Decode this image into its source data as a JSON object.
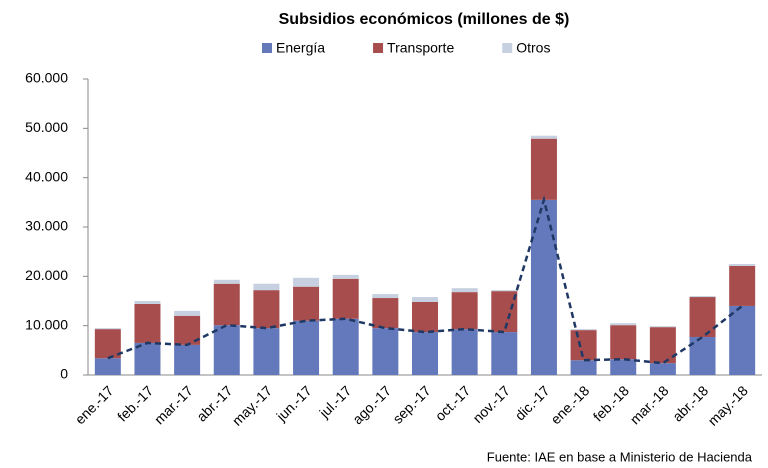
{
  "chart_data": {
    "type": "stacked_bar",
    "title": "Subsidios económicos (millones de $)",
    "source": "Fuente: IAE  en base a Ministerio de Hacienda",
    "categories": [
      "ene.-17",
      "feb.-17",
      "mar.-17",
      "abr.-17",
      "may.-17",
      "jun.-17",
      "jul.-17",
      "ago.-17",
      "sep.-17",
      "oct.-17",
      "nov.-17",
      "dic.-17",
      "ene.-18",
      "feb.-18",
      "mar.-18",
      "abr.-18",
      "may.-18"
    ],
    "series": [
      {
        "name": "Energía",
        "color": "#6479bb",
        "values": [
          3400,
          6500,
          6100,
          10100,
          9500,
          11000,
          11400,
          9500,
          8700,
          9300,
          8700,
          35500,
          3000,
          3200,
          2400,
          7700,
          14000
        ]
      },
      {
        "name": "Transporte",
        "color": "#a84d4d",
        "values": [
          5900,
          7900,
          5900,
          8400,
          7700,
          6900,
          8100,
          6100,
          6100,
          7500,
          8300,
          12400,
          6100,
          6900,
          7300,
          8100,
          8100
        ]
      },
      {
        "name": "Otros",
        "color": "#c6d0e0",
        "values": [
          200,
          600,
          1000,
          800,
          1300,
          1800,
          800,
          800,
          1000,
          800,
          200,
          600,
          200,
          400,
          200,
          200,
          400
        ]
      }
    ],
    "line_color": "#1f3864",
    "ylim": [
      0,
      60000
    ],
    "yticks": [
      0,
      {
        "value": 10000,
        "label": "10.000"
      },
      {
        "value": 20000,
        "label": "20.000"
      },
      {
        "value": 30000,
        "label": "30.000"
      },
      {
        "value": 40000,
        "label": "40.000"
      },
      {
        "value": 50000,
        "label": "50.000"
      },
      {
        "value": 60000,
        "label": "60.000"
      }
    ]
  }
}
